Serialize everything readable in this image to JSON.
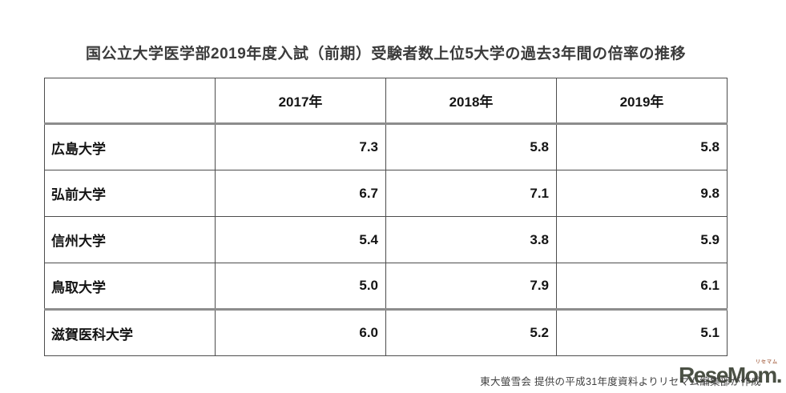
{
  "title": "国公立大学医学部2019年度入試（前期）受験者数上位5大学の過去3年間の倍率の推移",
  "table": {
    "corner_label": "",
    "columns": [
      "2017年",
      "2018年",
      "2019年"
    ],
    "rows": [
      {
        "name": "広島大学",
        "values": [
          "7.3",
          "5.8",
          "5.8"
        ]
      },
      {
        "name": "弘前大学",
        "values": [
          "6.7",
          "7.1",
          "9.8"
        ]
      },
      {
        "name": "信州大学",
        "values": [
          "5.4",
          "3.8",
          "5.9"
        ]
      },
      {
        "name": "鳥取大学",
        "values": [
          "5.0",
          "7.9",
          "6.1"
        ]
      },
      {
        "name": "滋賀医科大学",
        "values": [
          "6.0",
          "5.2",
          "5.1"
        ]
      }
    ]
  },
  "footer": {
    "credit": "東大螢雪会 提供の平成31年度資料よりリセマム編集部が作成"
  },
  "logo": {
    "text": "ReseMom.",
    "ruby": "リセマム"
  },
  "colors": {
    "title_text": "#3b3b3b",
    "table_border": "#4d4d4d",
    "thick_rule": "#8c8c8c",
    "cell_text": "#141414",
    "credit_text": "#3f3f3f",
    "logo_green": "#4a5044",
    "logo_ruby_orange": "#ad6e52",
    "background": "#ffffff"
  },
  "chart_data": {
    "type": "table",
    "title": "国公立大学医学部2019年度入試（前期）受験者数上位5大学の過去3年間の倍率の推移",
    "categories": [
      "2017年",
      "2018年",
      "2019年"
    ],
    "series": [
      {
        "name": "広島大学",
        "values": [
          7.3,
          5.8,
          5.8
        ]
      },
      {
        "name": "弘前大学",
        "values": [
          6.7,
          7.1,
          9.8
        ]
      },
      {
        "name": "信州大学",
        "values": [
          5.4,
          3.8,
          5.9
        ]
      },
      {
        "name": "鳥取大学",
        "values": [
          5.0,
          7.9,
          6.1
        ]
      },
      {
        "name": "滋賀医科大学",
        "values": [
          6.0,
          5.2,
          5.1
        ]
      }
    ],
    "notes": "倍率（志願者数/募集人員）の推移を示す表。ヘッダー行下と鳥取大学行下に太いグレー罫線。"
  }
}
